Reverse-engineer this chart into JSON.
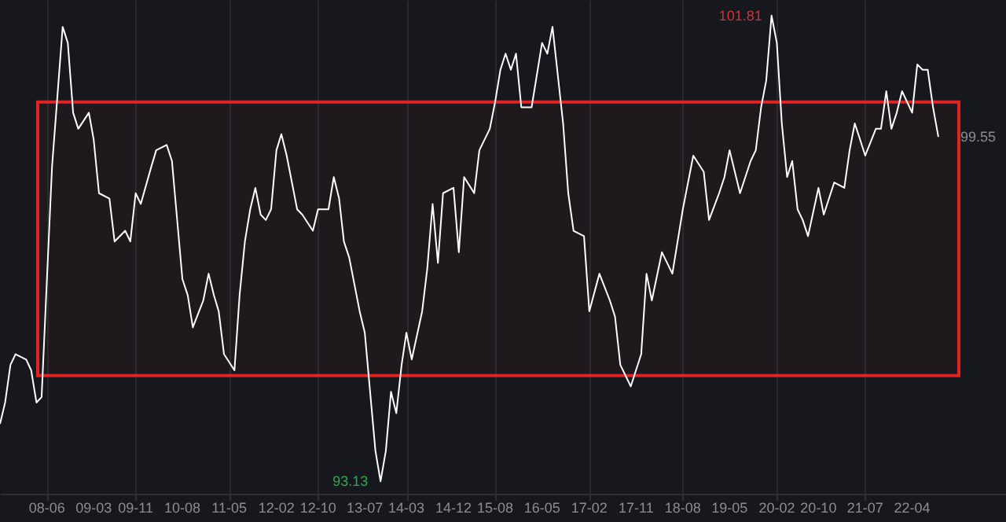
{
  "chart_data": {
    "type": "line",
    "x": [
      "2007-09",
      "2007-10",
      "2007-11",
      "2007-12",
      "2008-02",
      "2008-03",
      "2008-04",
      "2008-05",
      "2008-06",
      "2008-07",
      "2008-08",
      "2008-09",
      "2008-10",
      "2008-11",
      "2008-12",
      "2009-02",
      "2009-03",
      "2009-04",
      "2009-06",
      "2009-07",
      "2009-09",
      "2009-10",
      "2009-11",
      "2009-12",
      "2010-02",
      "2010-03",
      "2010-05",
      "2010-06",
      "2010-08",
      "2010-09",
      "2010-10",
      "2010-12",
      "2011-01",
      "2011-02",
      "2011-03",
      "2011-04",
      "2011-06",
      "2011-07",
      "2011-08",
      "2011-09",
      "2011-10",
      "2011-11",
      "2011-12",
      "2012-01",
      "2012-02",
      "2012-03",
      "2012-04",
      "2012-06",
      "2012-07",
      "2012-09",
      "2012-10",
      "2012-12",
      "2013-01",
      "2013-02",
      "2013-03",
      "2013-04",
      "2013-06",
      "2013-07",
      "2013-08",
      "2013-09",
      "2013-10",
      "2013-11",
      "2013-12",
      "2014-01",
      "2014-02",
      "2014-03",
      "2014-04",
      "2014-06",
      "2014-07",
      "2014-08",
      "2014-09",
      "2014-10",
      "2014-12",
      "2015-01",
      "2015-02",
      "2015-04",
      "2015-05",
      "2015-07",
      "2015-08",
      "2015-09",
      "2015-10",
      "2015-11",
      "2015-12",
      "2016-01",
      "2016-03",
      "2016-05",
      "2016-06",
      "2016-07",
      "2016-09",
      "2016-10",
      "2016-11",
      "2017-01",
      "2017-02",
      "2017-04",
      "2017-06",
      "2017-07",
      "2017-08",
      "2017-10",
      "2017-12",
      "2018-01",
      "2018-02",
      "2018-04",
      "2018-06",
      "2018-08",
      "2018-10",
      "2018-12",
      "2019-01",
      "2019-03",
      "2019-04",
      "2019-05",
      "2019-07",
      "2019-09",
      "2019-10",
      "2019-11",
      "2019-12",
      "2020-01",
      "2020-02",
      "2020-03",
      "2020-04",
      "2020-05",
      "2020-06",
      "2020-07",
      "2020-08",
      "2020-10",
      "2020-11",
      "2021-01",
      "2021-03",
      "2021-04",
      "2021-05",
      "2021-06",
      "2021-07",
      "2021-09",
      "2021-10",
      "2021-11",
      "2021-12",
      "2022-01",
      "2022-02",
      "2022-04",
      "2022-05",
      "2022-06",
      "2022-07",
      "2022-08",
      "2022-09"
    ],
    "series": [
      {
        "color": "#ffffff",
        "values": [
          94.2,
          94.6,
          95.3,
          95.5,
          95.4,
          95.2,
          94.6,
          94.7,
          96.9,
          99.0,
          100.3,
          101.6,
          101.3,
          100.0,
          99.7,
          100.0,
          99.5,
          98.5,
          98.4,
          97.6,
          97.8,
          97.6,
          98.5,
          98.3,
          99.0,
          99.3,
          99.4,
          99.1,
          96.9,
          96.6,
          96.0,
          96.5,
          97.0,
          96.6,
          96.3,
          95.5,
          95.2,
          96.6,
          97.6,
          98.2,
          98.6,
          98.1,
          98.0,
          98.2,
          99.3,
          99.6,
          99.2,
          98.2,
          98.1,
          97.8,
          98.2,
          98.2,
          98.8,
          98.4,
          97.6,
          97.3,
          96.3,
          95.9,
          94.8,
          93.7,
          93.13,
          93.7,
          94.8,
          94.4,
          95.3,
          95.9,
          95.4,
          96.3,
          97.1,
          98.3,
          97.2,
          98.5,
          98.6,
          97.4,
          98.8,
          98.5,
          99.3,
          99.7,
          100.2,
          100.8,
          101.1,
          100.8,
          101.1,
          100.1,
          100.1,
          101.3,
          101.1,
          101.6,
          99.8,
          98.5,
          97.8,
          97.7,
          96.3,
          97.0,
          96.5,
          96.2,
          95.3,
          94.9,
          95.5,
          97.0,
          96.5,
          97.4,
          97.0,
          98.2,
          99.2,
          98.9,
          98.0,
          98.5,
          98.8,
          99.3,
          98.5,
          99.1,
          99.3,
          100.1,
          100.6,
          101.81,
          101.3,
          99.8,
          98.8,
          99.1,
          98.2,
          98.0,
          97.7,
          98.6,
          98.1,
          98.7,
          98.6,
          99.3,
          99.8,
          99.5,
          99.2,
          99.7,
          99.7,
          100.4,
          99.7,
          100.0,
          100.4,
          100.0,
          100.9,
          100.8,
          100.8,
          100.1,
          99.55
        ],
        "value_labels": [
          null,
          null,
          null,
          null,
          null,
          null,
          null,
          null,
          null,
          null,
          null,
          null,
          null,
          null,
          null,
          null,
          null,
          null,
          null,
          null,
          null,
          null,
          null,
          null,
          null,
          null,
          null,
          null,
          null,
          null,
          null,
          null,
          null,
          null,
          null,
          null,
          null,
          null,
          null,
          null,
          null,
          null,
          null,
          null,
          null,
          null,
          null,
          null,
          null,
          null,
          null,
          null,
          null,
          null,
          null,
          null,
          null,
          null,
          null,
          null,
          "93.13",
          null,
          null,
          null,
          null,
          null,
          null,
          null,
          null,
          null,
          null,
          null,
          null,
          null,
          null,
          null,
          null,
          null,
          null,
          null,
          null,
          null,
          null,
          null,
          null,
          null,
          null,
          null,
          null,
          null,
          null,
          null,
          null,
          null,
          null,
          null,
          null,
          null,
          null,
          null,
          null,
          null,
          null,
          null,
          null,
          null,
          null,
          null,
          null,
          null,
          null,
          null,
          null,
          null,
          null,
          "101.81",
          null,
          null,
          null,
          null,
          null,
          null,
          null,
          null,
          null,
          null,
          null,
          null,
          null,
          null,
          null,
          null,
          null,
          null,
          null,
          null,
          null,
          null,
          null,
          null,
          null,
          null,
          "99.55"
        ]
      }
    ],
    "xlim": [
      "2007-09",
      "2023-10"
    ],
    "xticks": [
      {
        "value": "2008-06",
        "label": "08-06"
      },
      {
        "value": "2009-03",
        "label": "09-03"
      },
      {
        "value": "2009-11",
        "label": "09-11"
      },
      {
        "value": "2010-08",
        "label": "10-08"
      },
      {
        "value": "2011-05",
        "label": "11-05"
      },
      {
        "value": "2012-02",
        "label": "12-02"
      },
      {
        "value": "2012-10",
        "label": "12-10"
      },
      {
        "value": "2013-07",
        "label": "13-07"
      },
      {
        "value": "2014-03",
        "label": "14-03"
      },
      {
        "value": "2014-12",
        "label": "14-12"
      },
      {
        "value": "2015-08",
        "label": "15-08"
      },
      {
        "value": "2016-05",
        "label": "16-05"
      },
      {
        "value": "2017-02",
        "label": "17-02"
      },
      {
        "value": "2017-11",
        "label": "17-11"
      },
      {
        "value": "2018-08",
        "label": "18-08"
      },
      {
        "value": "2019-05",
        "label": "19-05"
      },
      {
        "value": "2020-02",
        "label": "20-02"
      },
      {
        "value": "2020-10",
        "label": "20-10"
      },
      {
        "value": "2021-07",
        "label": "21-07"
      },
      {
        "value": "2022-04",
        "label": "22-04"
      }
    ],
    "ylim": [
      92.9,
      102.1
    ],
    "tick_labels": "x",
    "bands": [
      {
        "axis": "y",
        "from": 95.1,
        "to": 100.2,
        "color": "#e02424"
      }
    ],
    "grid": "x",
    "marker": "none",
    "line_style": "solid"
  }
}
